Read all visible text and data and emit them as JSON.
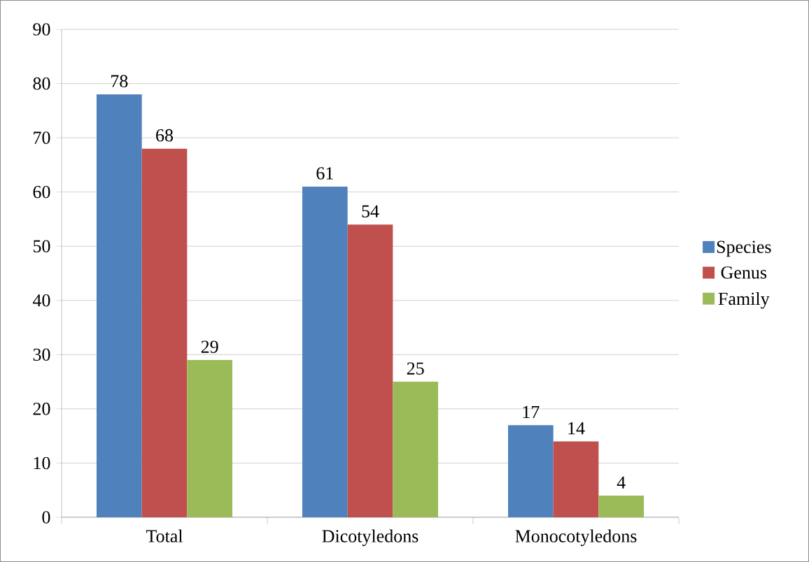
{
  "chart_data": {
    "type": "bar",
    "categories": [
      "Total",
      "Dicotyledons",
      "Monocotyledons"
    ],
    "series": [
      {
        "name": "Species",
        "color": "#4f81bd",
        "values": [
          78,
          61,
          17
        ]
      },
      {
        "name": "Genus",
        "color": "#c0504d",
        "values": [
          68,
          54,
          14
        ]
      },
      {
        "name": "Family",
        "color": "#9bbb59",
        "values": [
          29,
          25,
          4
        ]
      }
    ],
    "ylim": [
      0,
      90
    ],
    "yticks": [
      0,
      10,
      20,
      30,
      40,
      50,
      60,
      70,
      80,
      90
    ],
    "grid": "y",
    "legend": "right",
    "data_labels": true
  }
}
